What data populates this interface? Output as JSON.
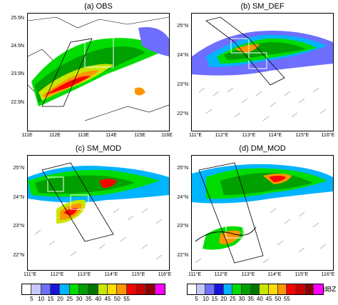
{
  "panels": [
    {
      "title": "(a) OBS",
      "x_ticks": [
        "111E",
        "112E",
        "113E",
        "114E",
        "115E",
        "116E"
      ],
      "y_ticks": [
        "25.5N",
        "24.5N",
        "23.5N",
        "22.5N"
      ]
    },
    {
      "title": "(b) SM_DEF",
      "x_ticks": [
        "111°E",
        "112°E",
        "113°E",
        "114°E",
        "115°E",
        "116°E"
      ],
      "y_ticks": [
        "25°N",
        "24°N",
        "23°N",
        "22°N"
      ]
    },
    {
      "title": "(c) SM_MOD",
      "x_ticks": [
        "111°E",
        "112°E",
        "113°E",
        "114°E",
        "115°E",
        "116°E"
      ],
      "y_ticks": [
        "25°N",
        "24°N",
        "23°N",
        "22°N"
      ]
    },
    {
      "title": "(d) DM_MOD",
      "x_ticks": [
        "111°E",
        "112°E",
        "113°E",
        "114°E",
        "115°E",
        "116°E"
      ],
      "y_ticks": [
        "25°N",
        "24°N",
        "23°N",
        "22°N"
      ]
    }
  ],
  "colorbar": {
    "labels": [
      "5",
      "10",
      "15",
      "20",
      "25",
      "30",
      "35",
      "40",
      "45",
      "50",
      "55"
    ],
    "unit": "dBZ",
    "colors": [
      "#ffffff",
      "#c8c8ff",
      "#6e6eff",
      "#1414dc",
      "#00b4ff",
      "#00dc00",
      "#00a000",
      "#007800",
      "#c8e600",
      "#ffdc00",
      "#ff9600",
      "#ff0000",
      "#c80000",
      "#8c0000",
      "#ff00ff"
    ]
  }
}
